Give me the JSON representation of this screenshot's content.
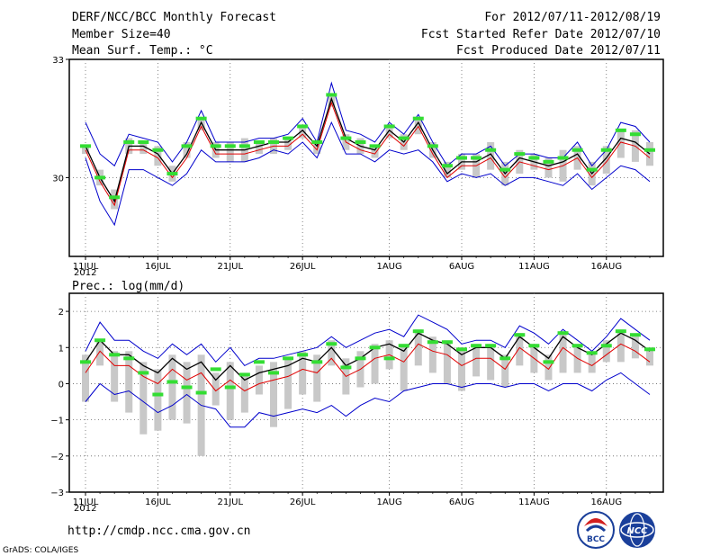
{
  "header": {
    "title": "DERF/NCC/BCC Monthly Forecast",
    "member_size": "Member Size=40",
    "variable": "Mean Surf. Temp.: °C",
    "period": "For 2012/07/11-2012/08/19",
    "fcst_started": "Fcst Started Refer Date 2012/07/10",
    "fcst_produced": "Fcst Produced Date 2012/07/11"
  },
  "footer": {
    "url": "http://cmdp.ncc.cma.gov.cn",
    "grads": "GrADS: COLA/IGES",
    "logo_left_text": "BCC",
    "logo_right_text": "NCC"
  },
  "colors": {
    "envelope": "#0000cc",
    "mean": "#e00000",
    "ensemble": "#000000",
    "bar": "#c8c8c8",
    "marker": "#33dd33",
    "grid": "#666666"
  },
  "chart_data": [
    {
      "type": "line",
      "title": "Mean Surf. Temp.: °C",
      "ylim": [
        28,
        33
      ],
      "y_ticks": [
        "33",
        "30"
      ],
      "y_tick_values": [
        33,
        30
      ],
      "x_ticks": [
        "11JUL",
        "16JUL",
        "21JUL",
        "26JUL",
        "1AUG",
        "6AUG",
        "11AUG",
        "16AUG"
      ],
      "x_tick_index": [
        0,
        5,
        10,
        15,
        21,
        26,
        31,
        36
      ],
      "year_label": "2012",
      "days": 40,
      "series": [
        {
          "name": "upper",
          "values": [
            31.4,
            30.6,
            30.3,
            31.1,
            31.0,
            30.9,
            30.4,
            30.9,
            31.7,
            30.9,
            30.9,
            30.9,
            31.0,
            31.0,
            31.1,
            31.5,
            30.9,
            32.4,
            31.2,
            31.1,
            30.9,
            31.4,
            31.1,
            31.6,
            30.9,
            30.3,
            30.6,
            30.6,
            30.8,
            30.3,
            30.6,
            30.6,
            30.5,
            30.5,
            30.9,
            30.3,
            30.7,
            31.4,
            31.3,
            30.9
          ]
        },
        {
          "name": "lower",
          "values": [
            30.5,
            29.4,
            28.8,
            30.2,
            30.2,
            30.0,
            29.8,
            30.1,
            30.7,
            30.4,
            30.4,
            30.4,
            30.5,
            30.7,
            30.6,
            30.9,
            30.5,
            31.4,
            30.6,
            30.6,
            30.4,
            30.7,
            30.6,
            30.7,
            30.4,
            29.9,
            30.1,
            30.0,
            30.1,
            29.8,
            30.0,
            30.0,
            29.9,
            29.8,
            30.1,
            29.7,
            30.0,
            30.3,
            30.2,
            29.9
          ]
        },
        {
          "name": "ensemble",
          "values": [
            30.8,
            30.0,
            29.4,
            30.8,
            30.8,
            30.6,
            30.1,
            30.6,
            31.4,
            30.7,
            30.7,
            30.7,
            30.8,
            30.9,
            30.9,
            31.2,
            30.8,
            32.0,
            31.0,
            30.8,
            30.7,
            31.2,
            30.9,
            31.4,
            30.7,
            30.1,
            30.4,
            30.4,
            30.6,
            30.1,
            30.5,
            30.4,
            30.3,
            30.4,
            30.6,
            30.1,
            30.5,
            31.0,
            30.9,
            30.6
          ]
        },
        {
          "name": "mean",
          "values": [
            30.7,
            29.9,
            29.3,
            30.7,
            30.7,
            30.5,
            30.0,
            30.5,
            31.3,
            30.6,
            30.6,
            30.6,
            30.7,
            30.8,
            30.8,
            31.1,
            30.7,
            31.9,
            30.9,
            30.7,
            30.6,
            31.1,
            30.8,
            31.3,
            30.6,
            30.0,
            30.3,
            30.3,
            30.5,
            30.0,
            30.4,
            30.3,
            30.2,
            30.3,
            30.5,
            30.0,
            30.4,
            30.9,
            30.8,
            30.5
          ]
        },
        {
          "name": "marker",
          "values": [
            30.8,
            30.0,
            29.5,
            30.9,
            30.9,
            30.7,
            30.1,
            30.8,
            31.5,
            30.8,
            30.8,
            30.8,
            30.9,
            30.9,
            31.0,
            31.3,
            30.9,
            32.1,
            31.0,
            30.9,
            30.8,
            31.3,
            31.0,
            31.5,
            30.8,
            30.3,
            30.5,
            30.5,
            30.7,
            30.2,
            30.6,
            30.5,
            30.4,
            30.5,
            30.7,
            30.2,
            30.7,
            31.2,
            31.1,
            30.7
          ]
        },
        {
          "name": "bar_high",
          "values": [
            30.8,
            30.2,
            29.7,
            31.0,
            30.9,
            30.8,
            30.3,
            30.9,
            31.5,
            30.9,
            30.9,
            31.0,
            30.9,
            31.0,
            31.0,
            31.3,
            30.9,
            32.1,
            31.1,
            31.0,
            30.8,
            31.3,
            31.1,
            31.5,
            30.9,
            30.4,
            30.6,
            30.6,
            30.9,
            30.4,
            30.7,
            30.6,
            30.5,
            30.7,
            30.8,
            30.4,
            30.8,
            31.2,
            31.2,
            30.9
          ]
        },
        {
          "name": "bar_low",
          "values": [
            30.6,
            29.8,
            29.2,
            30.6,
            30.6,
            30.3,
            29.9,
            30.5,
            31.2,
            30.5,
            30.4,
            30.4,
            30.6,
            30.6,
            30.7,
            31.0,
            30.6,
            31.8,
            30.7,
            30.6,
            30.5,
            31.0,
            30.7,
            31.1,
            30.5,
            30.0,
            30.2,
            30.0,
            30.2,
            29.8,
            30.1,
            30.2,
            30.0,
            29.9,
            30.2,
            29.8,
            30.1,
            30.5,
            30.4,
            30.3
          ]
        }
      ]
    },
    {
      "type": "line",
      "title": "Prec.: log(mm/d)",
      "ylim": [
        -3,
        2.5
      ],
      "y_ticks": [
        "2",
        "1",
        "0",
        "−1",
        "−2",
        "−3"
      ],
      "y_tick_values": [
        2,
        1,
        0,
        -1,
        -2,
        -3
      ],
      "x_ticks": [
        "11JUL",
        "16JUL",
        "21JUL",
        "26JUL",
        "1AUG",
        "6AUG",
        "11AUG",
        "16AUG"
      ],
      "x_tick_index": [
        0,
        5,
        10,
        15,
        21,
        26,
        31,
        36
      ],
      "year_label": "2012",
      "days": 40,
      "series": [
        {
          "name": "upper",
          "values": [
            0.9,
            1.7,
            1.2,
            1.2,
            0.9,
            0.7,
            1.1,
            0.8,
            1.1,
            0.6,
            1.0,
            0.5,
            0.7,
            0.7,
            0.8,
            0.9,
            1.0,
            1.3,
            1.0,
            1.2,
            1.4,
            1.5,
            1.3,
            1.9,
            1.7,
            1.5,
            1.1,
            1.2,
            1.2,
            1.0,
            1.6,
            1.4,
            1.1,
            1.5,
            1.2,
            0.9,
            1.3,
            1.8,
            1.5,
            1.2
          ]
        },
        {
          "name": "lower",
          "values": [
            -0.5,
            0.0,
            -0.3,
            -0.2,
            -0.5,
            -0.8,
            -0.6,
            -0.3,
            -0.6,
            -0.7,
            -1.2,
            -1.2,
            -0.8,
            -0.9,
            -0.8,
            -0.7,
            -0.8,
            -0.6,
            -0.9,
            -0.6,
            -0.4,
            -0.5,
            -0.2,
            -0.1,
            0.0,
            0.0,
            -0.1,
            0.0,
            0.0,
            -0.1,
            0.0,
            0.0,
            -0.2,
            0.0,
            0.0,
            -0.2,
            0.1,
            0.3,
            0.0,
            -0.3
          ]
        },
        {
          "name": "ensemble",
          "values": [
            0.6,
            1.2,
            0.8,
            0.8,
            0.5,
            0.3,
            0.7,
            0.4,
            0.6,
            0.1,
            0.5,
            0.1,
            0.3,
            0.4,
            0.5,
            0.7,
            0.6,
            1.0,
            0.5,
            0.7,
            1.0,
            1.1,
            0.9,
            1.4,
            1.2,
            1.1,
            0.8,
            1.0,
            1.0,
            0.7,
            1.3,
            1.0,
            0.7,
            1.3,
            1.0,
            0.8,
            1.1,
            1.4,
            1.2,
            0.9
          ]
        },
        {
          "name": "mean",
          "values": [
            0.3,
            0.9,
            0.5,
            0.5,
            0.2,
            0.0,
            0.4,
            0.1,
            0.3,
            -0.2,
            0.1,
            -0.2,
            0.0,
            0.1,
            0.2,
            0.4,
            0.3,
            0.7,
            0.2,
            0.4,
            0.7,
            0.8,
            0.6,
            1.1,
            0.9,
            0.8,
            0.5,
            0.7,
            0.7,
            0.4,
            1.0,
            0.7,
            0.4,
            1.0,
            0.7,
            0.5,
            0.8,
            1.1,
            0.9,
            0.6
          ]
        },
        {
          "name": "marker",
          "values": [
            0.6,
            1.2,
            0.8,
            0.7,
            0.3,
            -0.3,
            0.05,
            -0.1,
            -0.25,
            0.4,
            -0.1,
            0.25,
            0.6,
            0.3,
            0.7,
            0.8,
            0.6,
            1.1,
            0.45,
            0.7,
            1.0,
            0.7,
            1.05,
            1.45,
            1.15,
            1.15,
            0.95,
            1.05,
            1.05,
            0.7,
            1.35,
            1.05,
            0.6,
            1.4,
            1.05,
            0.85,
            1.05,
            1.45,
            1.35,
            0.95
          ]
        },
        {
          "name": "bar_high",
          "values": [
            0.8,
            1.2,
            0.9,
            0.9,
            0.6,
            0.4,
            0.8,
            0.6,
            0.8,
            0.3,
            0.6,
            0.3,
            0.5,
            0.6,
            0.7,
            0.9,
            0.8,
            1.2,
            0.7,
            0.9,
            1.1,
            1.2,
            1.1,
            1.5,
            1.3,
            1.2,
            1.0,
            1.1,
            1.1,
            0.8,
            1.4,
            1.1,
            0.8,
            1.4,
            1.1,
            0.9,
            1.2,
            1.5,
            1.3,
            1.0
          ]
        },
        {
          "name": "bar_low",
          "values": [
            -0.5,
            0.5,
            -0.5,
            -0.8,
            -1.4,
            -1.3,
            -1.0,
            -1.1,
            -2.0,
            -0.6,
            -1.0,
            -0.8,
            -0.3,
            -1.2,
            -0.7,
            -0.3,
            -0.5,
            0.5,
            -0.3,
            -0.1,
            0.0,
            0.4,
            -0.2,
            0.5,
            0.3,
            0.0,
            -0.2,
            0.2,
            0.1,
            -0.1,
            0.5,
            0.3,
            0.1,
            0.3,
            0.3,
            0.3,
            0.6,
            0.6,
            0.7,
            0.5
          ]
        }
      ]
    }
  ]
}
